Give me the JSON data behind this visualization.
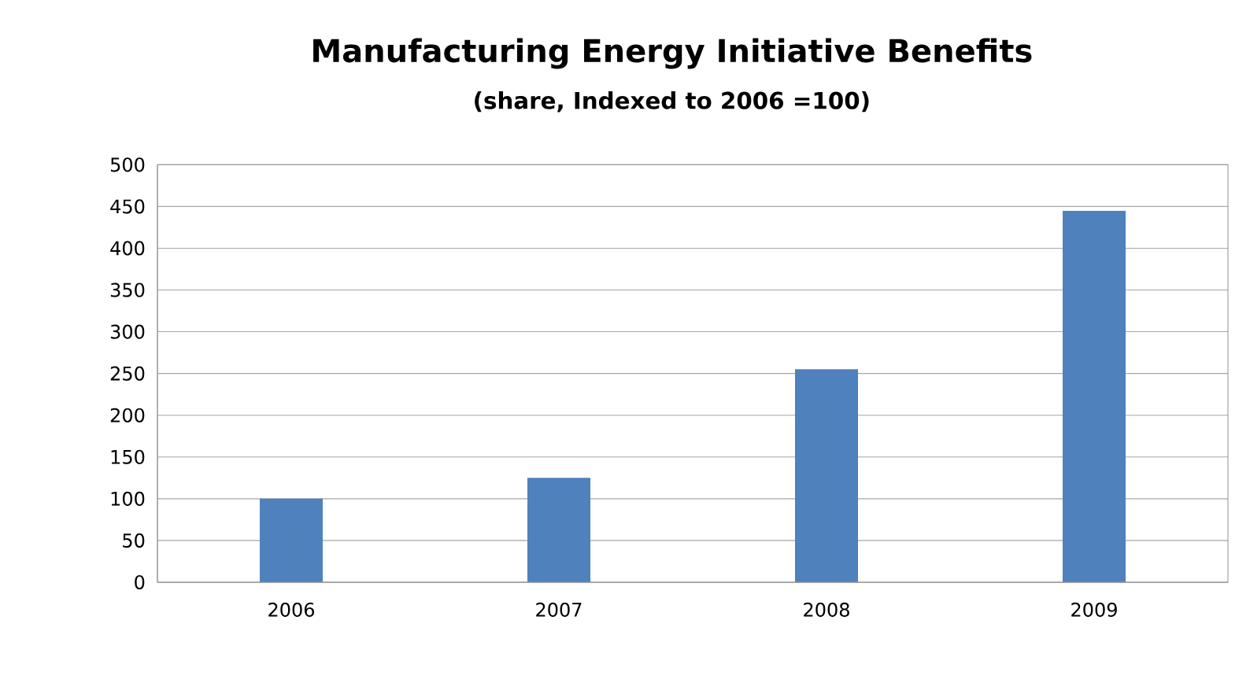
{
  "chart_data": {
    "type": "bar",
    "title": "Manufacturing Energy Initiative Benefits",
    "subtitle": "(share, Indexed to 2006 =100)",
    "categories": [
      "2006",
      "2007",
      "2008",
      "2009"
    ],
    "values": [
      100,
      125,
      255,
      445
    ],
    "color": "#4f81bd",
    "ylim": [
      0,
      500
    ],
    "yticks": [
      0,
      50,
      100,
      150,
      200,
      250,
      300,
      350,
      400,
      450,
      500
    ],
    "grid": "y"
  }
}
